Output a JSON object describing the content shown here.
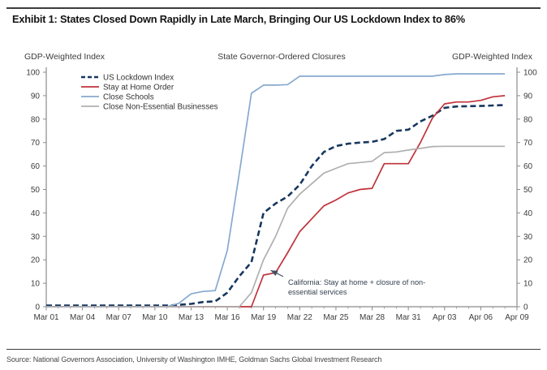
{
  "header": {
    "title": "Exhibit 1: States Closed Down Rapidly in Late March, Bringing Our US Lockdown Index to 86%"
  },
  "footer": {
    "source": "Source: National Governors Association, University of Washington IMHE, Goldman Sachs Global Investment Research"
  },
  "chart_data": {
    "type": "line",
    "title": "State Governor-Ordered Closures",
    "left_axis_title": "GDP-Weighted Index",
    "right_axis_title": "GDP-Weighted Index",
    "ylim": [
      0,
      100
    ],
    "y_ticks": [
      0,
      10,
      20,
      30,
      40,
      50,
      60,
      70,
      80,
      90,
      100
    ],
    "x_ticks": [
      {
        "label": "Mar 01",
        "day": 0
      },
      {
        "label": "Mar 04",
        "day": 3
      },
      {
        "label": "Mar 07",
        "day": 6
      },
      {
        "label": "Mar 10",
        "day": 9
      },
      {
        "label": "Mar 13",
        "day": 12
      },
      {
        "label": "Mar 16",
        "day": 15
      },
      {
        "label": "Mar 19",
        "day": 18
      },
      {
        "label": "Mar 22",
        "day": 21
      },
      {
        "label": "Mar 25",
        "day": 24
      },
      {
        "label": "Mar 28",
        "day": 27
      },
      {
        "label": "Mar 31",
        "day": 30
      },
      {
        "label": "Apr 03",
        "day": 33
      },
      {
        "label": "Apr 06",
        "day": 36
      },
      {
        "label": "Apr 09",
        "day": 39
      }
    ],
    "xlim_days": [
      0,
      39
    ],
    "x_dates": [
      "Mar 01",
      "Mar 02",
      "Mar 03",
      "Mar 04",
      "Mar 05",
      "Mar 06",
      "Mar 07",
      "Mar 08",
      "Mar 09",
      "Mar 10",
      "Mar 11",
      "Mar 12",
      "Mar 13",
      "Mar 14",
      "Mar 15",
      "Mar 16",
      "Mar 17",
      "Mar 18",
      "Mar 19",
      "Mar 20",
      "Mar 21",
      "Mar 22",
      "Mar 23",
      "Mar 24",
      "Mar 25",
      "Mar 26",
      "Mar 27",
      "Mar 28",
      "Mar 29",
      "Mar 30",
      "Mar 31",
      "Apr 01",
      "Apr 02",
      "Apr 03",
      "Apr 04",
      "Apr 05",
      "Apr 06",
      "Apr 07",
      "Apr 08"
    ],
    "legend_position": "top-left-inside",
    "grid": false,
    "series": [
      {
        "name": "US Lockdown Index",
        "color": "#17375e",
        "dash": "7,4",
        "width": 2.6,
        "values": [
          0.5,
          0.5,
          0.5,
          0.5,
          0.5,
          0.5,
          0.5,
          0.5,
          0.5,
          0.5,
          0.5,
          0.8,
          1.2,
          2,
          2.3,
          6,
          13,
          19,
          40,
          44,
          47,
          52,
          60,
          66,
          68.5,
          69.5,
          70,
          70.3,
          71.5,
          75,
          75.5,
          79,
          81.5,
          84.8,
          85.4,
          85.5,
          85.6,
          85.8,
          86
        ]
      },
      {
        "name": "Stay at Home Order",
        "color": "#c0333b",
        "dash": "",
        "width": 1.7,
        "values": [
          0,
          0,
          0,
          0,
          0,
          0,
          0,
          0,
          0,
          0,
          0,
          0,
          0,
          0,
          0,
          0,
          0,
          0,
          13.5,
          14.5,
          23,
          32,
          37.5,
          43,
          45.5,
          48.5,
          50,
          50.5,
          61,
          61,
          61,
          70,
          80.5,
          86.5,
          87.3,
          87.3,
          88,
          89.5,
          90
        ]
      },
      {
        "name": "Close Schools",
        "color": "#87a9cf",
        "dash": "",
        "width": 1.7,
        "values": [
          0,
          0,
          0,
          0,
          0,
          0,
          0,
          0,
          0,
          0,
          0,
          1.5,
          5.5,
          6.5,
          6.9,
          24,
          57,
          91,
          94.5,
          94.5,
          94.7,
          98.3,
          98.3,
          98.3,
          98.3,
          98.3,
          98.3,
          98.3,
          98.3,
          98.3,
          98.3,
          98.3,
          98.3,
          99,
          99.3,
          99.3,
          99.3,
          99.3,
          99.3
        ]
      },
      {
        "name": "Close Non-Essential Businesses",
        "color": "#b0b0b0",
        "dash": "",
        "width": 1.7,
        "values": [
          0,
          0,
          0,
          0,
          0,
          0,
          0,
          0,
          0,
          0,
          0,
          0,
          0,
          0,
          0,
          0,
          0,
          6,
          20,
          30,
          42,
          48,
          52.5,
          57,
          59,
          61,
          61.5,
          62,
          65.7,
          66,
          66.8,
          67.5,
          68.3,
          68.4,
          68.4,
          68.4,
          68.4,
          68.4,
          68.4
        ]
      }
    ],
    "annotation": {
      "lines": [
        "California: Stay at home + closure of non-",
        "essential services"
      ],
      "target_day": 18.6,
      "target_value": 15.5,
      "text_x_day": 19.9,
      "text_y_value": 11.5,
      "color": "#3f4e63"
    }
  },
  "style_colors": {
    "spine": "#8c8c8c",
    "tick_text": "#3c3c3c",
    "axis_title_text": "#3c3c3c",
    "legend_text": "#333333"
  }
}
